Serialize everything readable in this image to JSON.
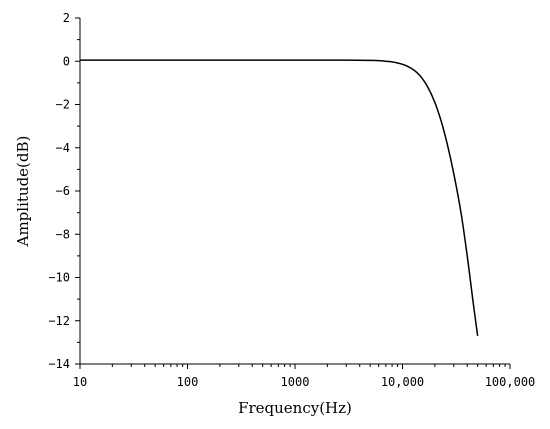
{
  "chart_data": {
    "type": "line",
    "title": "",
    "xlabel": "Frequency(Hz)",
    "ylabel": "Amplitude(dB)",
    "x_scale": "log",
    "xlim": [
      10,
      100000
    ],
    "ylim": [
      -14,
      2
    ],
    "grid": false,
    "x_ticks": [
      {
        "value": 10,
        "label": "10"
      },
      {
        "value": 100,
        "label": "100"
      },
      {
        "value": 1000,
        "label": "1000"
      },
      {
        "value": 10000,
        "label": "10,000"
      },
      {
        "value": 100000,
        "label": "100,000"
      }
    ],
    "y_ticks": [
      {
        "value": 2,
        "label": "2"
      },
      {
        "value": 0,
        "label": "0"
      },
      {
        "value": -2,
        "label": "−2"
      },
      {
        "value": -4,
        "label": "−4"
      },
      {
        "value": -6,
        "label": "−6"
      },
      {
        "value": -8,
        "label": "−8"
      },
      {
        "value": -10,
        "label": "−10"
      },
      {
        "value": -12,
        "label": "−12"
      },
      {
        "value": -14,
        "label": "−14"
      }
    ],
    "series": [
      {
        "color": "#000000",
        "x": [
          10,
          100,
          1000,
          3000,
          5000,
          6000,
          7000,
          8000,
          9000,
          10000,
          11000,
          12000,
          13000,
          14000,
          15000,
          17000,
          20000,
          23000,
          26000,
          30000,
          35000,
          40000,
          45000,
          50000
        ],
        "y": [
          0.05,
          0.05,
          0.05,
          0.05,
          0.04,
          0.03,
          0.0,
          -0.03,
          -0.08,
          -0.14,
          -0.22,
          -0.32,
          -0.44,
          -0.58,
          -0.75,
          -1.15,
          -1.9,
          -2.8,
          -3.8,
          -5.2,
          -7.0,
          -9.0,
          -11.0,
          -12.7
        ]
      }
    ]
  }
}
